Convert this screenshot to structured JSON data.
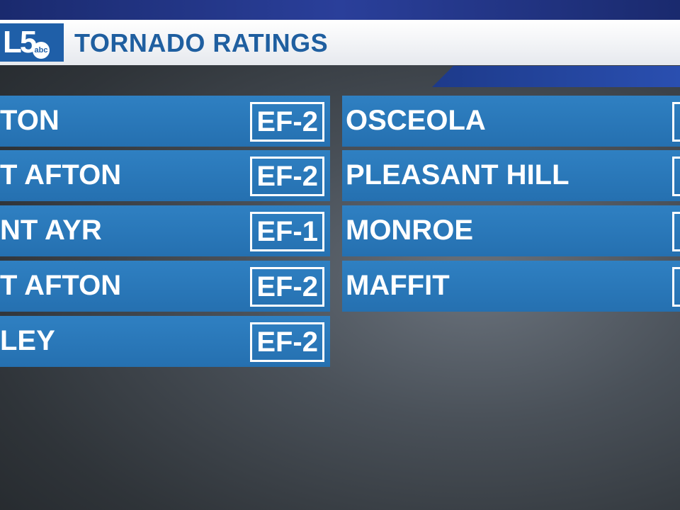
{
  "header": {
    "logo": {
      "main": "L5",
      "network": "abc"
    },
    "title": "TORNADO RATINGS"
  },
  "table": {
    "left": [
      {
        "name": "TON",
        "rating": "EF-2"
      },
      {
        "name": "T AFTON",
        "rating": "EF-2"
      },
      {
        "name": "NT AYR",
        "rating": "EF-1"
      },
      {
        "name": "T AFTON",
        "rating": "EF-2"
      },
      {
        "name": "LEY",
        "rating": "EF-2"
      }
    ],
    "right": [
      {
        "name": "OSCEOLA"
      },
      {
        "name": "PLEASANT HILL"
      },
      {
        "name": "MONROE"
      },
      {
        "name": "MAFFIT"
      }
    ]
  }
}
